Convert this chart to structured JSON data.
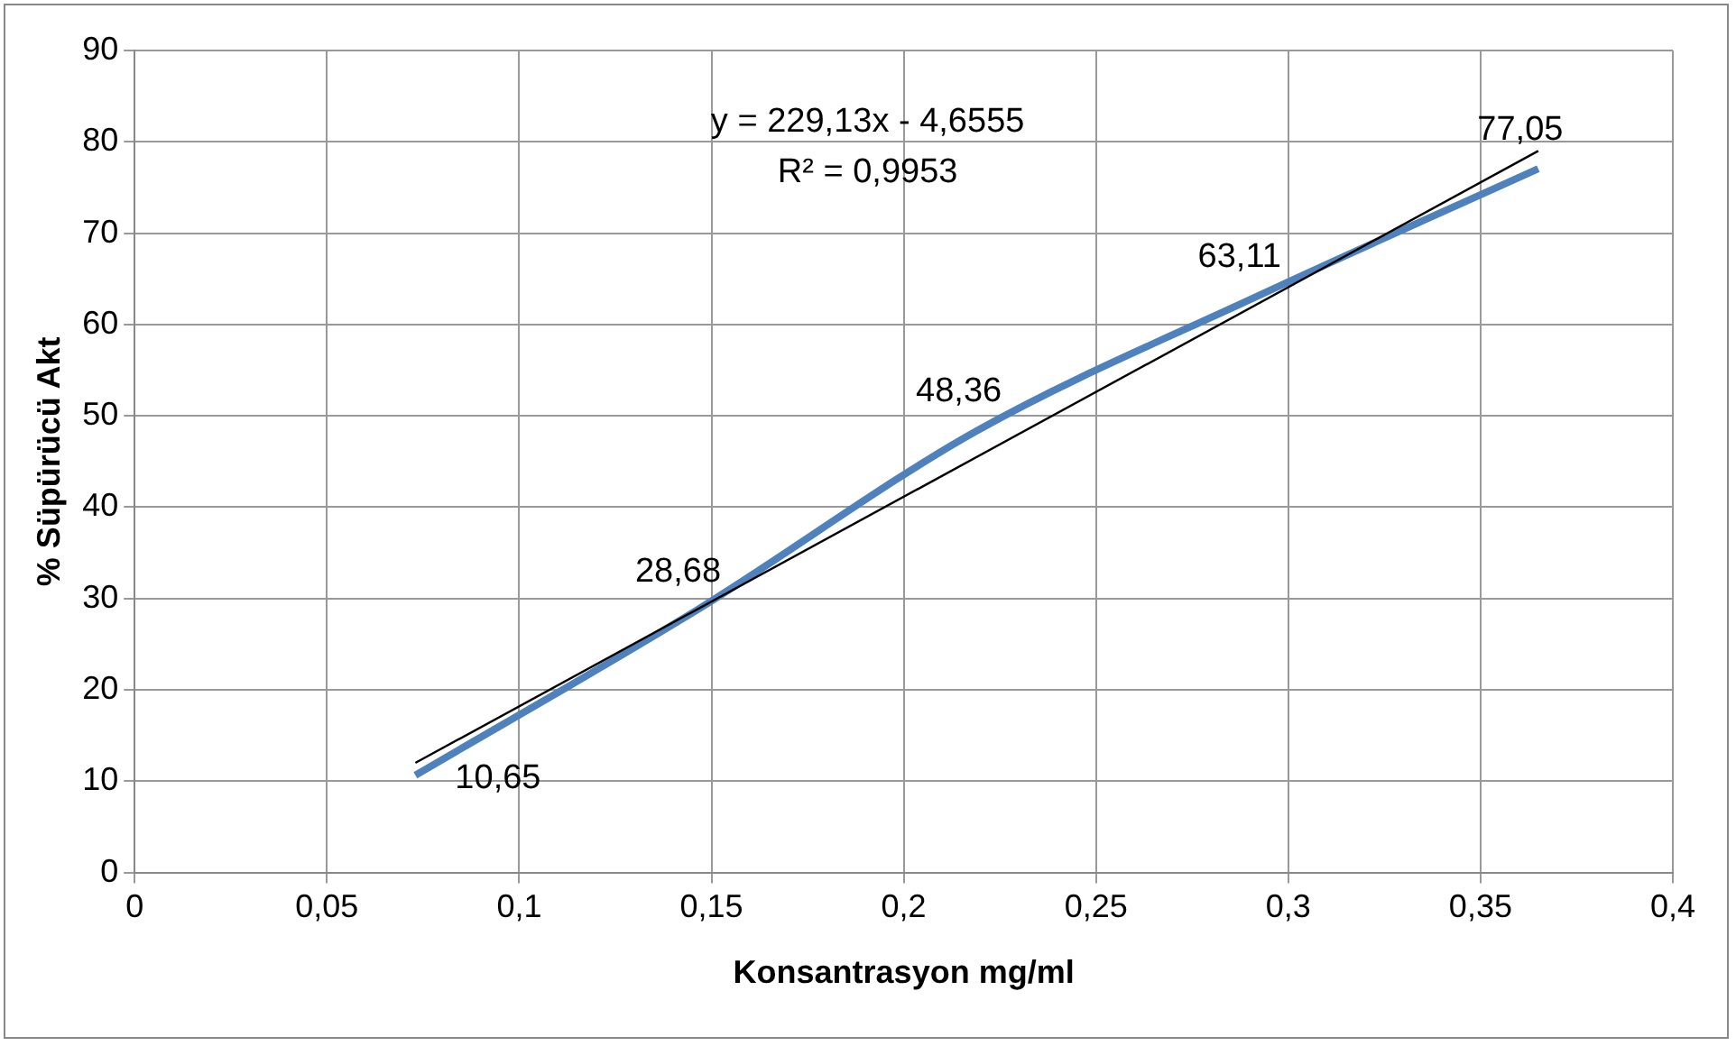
{
  "chart_data": {
    "type": "line",
    "xlabel": "Konsantrasyon mg/ml",
    "ylabel": "% Süpürücü Akt",
    "x": [
      0.073,
      0.146,
      0.219,
      0.292,
      0.365
    ],
    "series": [
      {
        "color": "#4f81bd",
        "values": [
          10.65,
          28.68,
          48.36,
          63.11,
          77.05
        ],
        "value_labels": [
          "10,65",
          "28,68",
          "48,36",
          "63,11",
          "77,05"
        ]
      },
      {
        "type": "line",
        "color": "#000000",
        "x": [
          0.073,
          0.365
        ],
        "values": [
          12,
          79
        ]
      }
    ],
    "annotations": [
      "y = 229,13x - 4,6555",
      "R² = 0,9953"
    ],
    "xlim": [
      0,
      0.4
    ],
    "xticks": [
      0,
      {
        "value": 0.05,
        "label": "0,05"
      },
      {
        "value": 0.1,
        "label": "0,1"
      },
      {
        "value": 0.15,
        "label": "0,15"
      },
      {
        "value": 0.2,
        "label": "0,2"
      },
      {
        "value": 0.25,
        "label": "0,25"
      },
      {
        "value": 0.3,
        "label": "0,3"
      },
      {
        "value": 0.35,
        "label": "0,35"
      },
      {
        "value": 0.4,
        "label": "0,4"
      }
    ],
    "ylim": [
      0,
      90
    ],
    "yticks": [
      0,
      10,
      20,
      30,
      40,
      50,
      60,
      70,
      80,
      90
    ],
    "grid": true,
    "legend": false,
    "marker": "none"
  }
}
